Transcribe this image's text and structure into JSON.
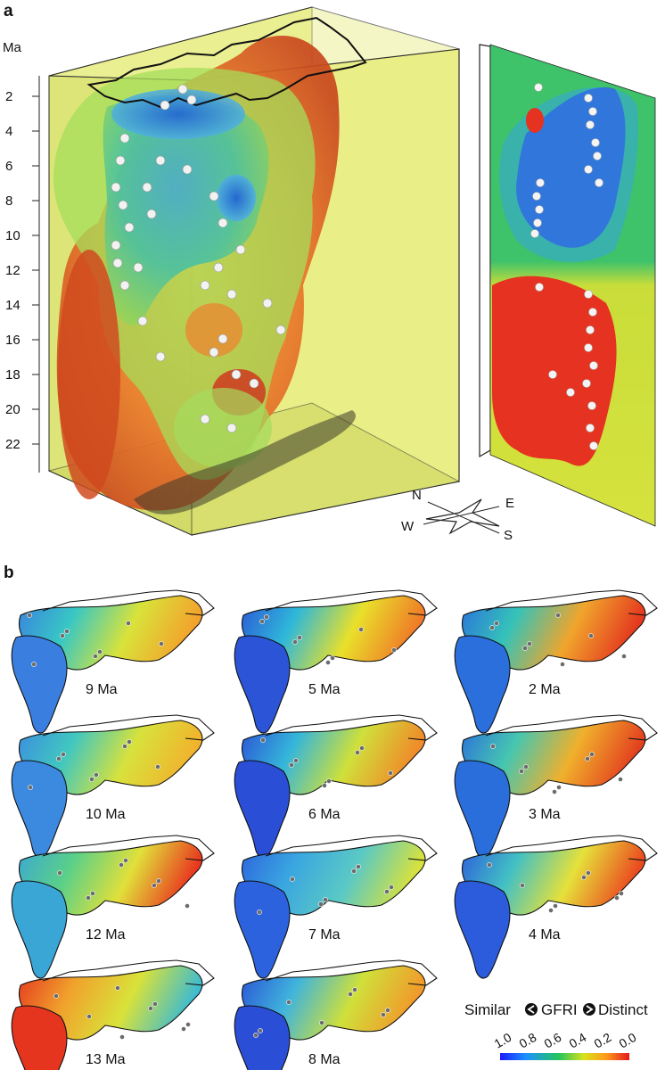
{
  "figure": {
    "panel_a_label": "a",
    "panel_b_label": "b",
    "ma_axis_title": "Ma",
    "ma_ticks": [
      "2",
      "4",
      "6",
      "8",
      "10",
      "12",
      "14",
      "16",
      "18",
      "20",
      "22"
    ],
    "compass": {
      "n": "N",
      "e": "E",
      "w": "W",
      "s": "S"
    },
    "maps": [
      {
        "label": "9 Ma"
      },
      {
        "label": "5 Ma"
      },
      {
        "label": "2 Ma"
      },
      {
        "label": "10 Ma"
      },
      {
        "label": "6 Ma"
      },
      {
        "label": "3 Ma"
      },
      {
        "label": "12 Ma"
      },
      {
        "label": "7 Ma"
      },
      {
        "label": "4 Ma"
      },
      {
        "label": "13 Ma"
      },
      {
        "label": "8 Ma"
      }
    ],
    "legend": {
      "left_word": "Similar",
      "metric": "GFRI",
      "right_word": "Distinct",
      "ticks": [
        "1.0",
        "0.8",
        "0.6",
        "0.4",
        "0.2",
        "0.0"
      ],
      "gradient_colors": [
        "#1a1aff",
        "#1e90ff",
        "#22c55e",
        "#d9e21a",
        "#ff9a1a",
        "#e31a1c"
      ]
    },
    "colors": {
      "box_fill": "#e6ec7e",
      "box_edge": "#2a2a2a",
      "red": "#d8431f",
      "orange": "#ef8a2b",
      "green": "#8fd14f",
      "teal": "#3fb9a8",
      "blue": "#2b6fd6",
      "sample": "#f2f2f2"
    }
  }
}
